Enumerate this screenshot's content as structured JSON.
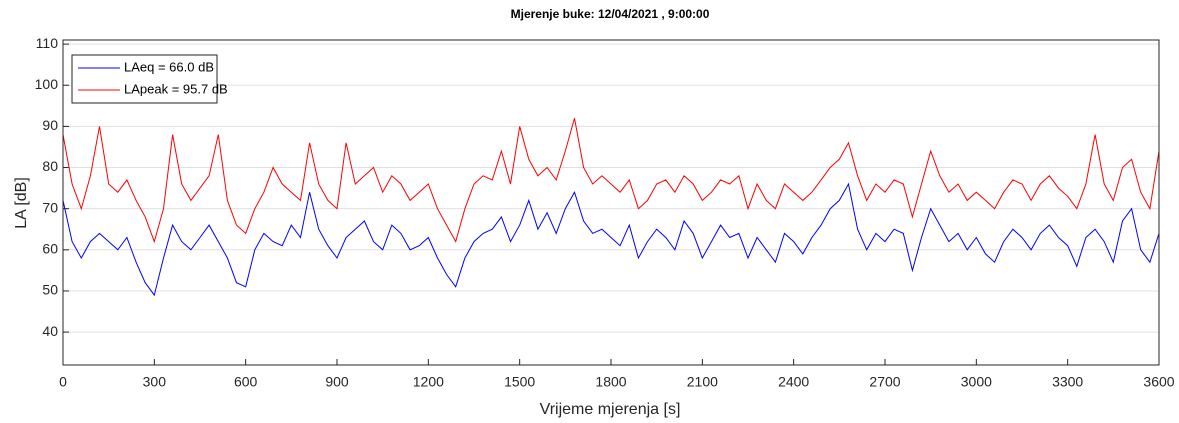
{
  "chart_data": {
    "type": "line",
    "title": "Mjerenje buke:  12/04/2021 , 9:00:00",
    "x_label": "Vrijeme mjerenja [s]",
    "y_label": "LA [dB]",
    "x": [
      0,
      30,
      60,
      90,
      120,
      150,
      180,
      210,
      240,
      270,
      300,
      330,
      360,
      390,
      420,
      450,
      480,
      510,
      540,
      570,
      600,
      630,
      660,
      690,
      720,
      750,
      780,
      810,
      840,
      870,
      900,
      930,
      960,
      990,
      1020,
      1050,
      1080,
      1110,
      1140,
      1170,
      1200,
      1230,
      1260,
      1290,
      1320,
      1350,
      1380,
      1410,
      1440,
      1470,
      1500,
      1530,
      1560,
      1590,
      1620,
      1650,
      1680,
      1710,
      1740,
      1770,
      1800,
      1830,
      1860,
      1890,
      1920,
      1950,
      1980,
      2010,
      2040,
      2070,
      2100,
      2130,
      2160,
      2190,
      2220,
      2250,
      2280,
      2310,
      2340,
      2370,
      2400,
      2430,
      2460,
      2490,
      2520,
      2550,
      2580,
      2610,
      2640,
      2670,
      2700,
      2730,
      2760,
      2790,
      2820,
      2850,
      2880,
      2910,
      2940,
      2970,
      3000,
      3030,
      3060,
      3090,
      3120,
      3150,
      3180,
      3210,
      3240,
      3270,
      3300,
      3330,
      3360,
      3390,
      3420,
      3450,
      3480,
      3510,
      3540,
      3570,
      3600
    ],
    "series": [
      {
        "name": "LAeq = 66.0 dB",
        "color": "#0000ff",
        "values": [
          72,
          62,
          58,
          62,
          64,
          62,
          60,
          63,
          57,
          52,
          49,
          58,
          66,
          62,
          60,
          63,
          66,
          62,
          58,
          52,
          51,
          60,
          64,
          62,
          61,
          66,
          63,
          74,
          65,
          61,
          58,
          63,
          65,
          67,
          62,
          60,
          66,
          64,
          60,
          61,
          63,
          58,
          54,
          51,
          58,
          62,
          64,
          65,
          68,
          62,
          66,
          72,
          65,
          69,
          64,
          70,
          74,
          67,
          64,
          65,
          63,
          61,
          66,
          58,
          62,
          65,
          63,
          60,
          67,
          64,
          58,
          62,
          66,
          63,
          64,
          58,
          63,
          60,
          57,
          64,
          62,
          59,
          63,
          66,
          70,
          72,
          76,
          65,
          60,
          64,
          62,
          65,
          64,
          55,
          63,
          70,
          66,
          62,
          64,
          60,
          63,
          59,
          57,
          62,
          65,
          63,
          60,
          64,
          66,
          63,
          61,
          56,
          63,
          65,
          62,
          57,
          67,
          70,
          60,
          57,
          64
        ]
      },
      {
        "name": "LApeak = 95.7 dB",
        "color": "#ff0000",
        "values": [
          88,
          76,
          70,
          78,
          90,
          76,
          74,
          77,
          72,
          68,
          62,
          70,
          88,
          76,
          72,
          75,
          78,
          88,
          72,
          66,
          64,
          70,
          74,
          80,
          76,
          74,
          72,
          86,
          76,
          72,
          70,
          86,
          76,
          78,
          80,
          74,
          78,
          76,
          72,
          74,
          76,
          70,
          66,
          62,
          70,
          76,
          78,
          77,
          84,
          76,
          90,
          82,
          78,
          80,
          77,
          84,
          92,
          80,
          76,
          78,
          76,
          74,
          77,
          70,
          72,
          76,
          77,
          74,
          78,
          76,
          72,
          74,
          77,
          76,
          78,
          70,
          76,
          72,
          70,
          76,
          74,
          72,
          74,
          77,
          80,
          82,
          86,
          78,
          72,
          76,
          74,
          77,
          76,
          68,
          76,
          84,
          78,
          74,
          76,
          72,
          74,
          72,
          70,
          74,
          77,
          76,
          72,
          76,
          78,
          75,
          73,
          70,
          76,
          88,
          76,
          72,
          80,
          82,
          74,
          70,
          84
        ]
      }
    ],
    "xlim": [
      0,
      3600
    ],
    "ylim": [
      32,
      111
    ],
    "xticks": [
      0,
      300,
      600,
      900,
      1200,
      1500,
      1800,
      2100,
      2400,
      2700,
      3000,
      3300,
      3600
    ],
    "yticks": [
      40,
      50,
      60,
      70,
      80,
      90,
      100,
      110
    ],
    "grid": true,
    "legend_position": "top-left"
  }
}
